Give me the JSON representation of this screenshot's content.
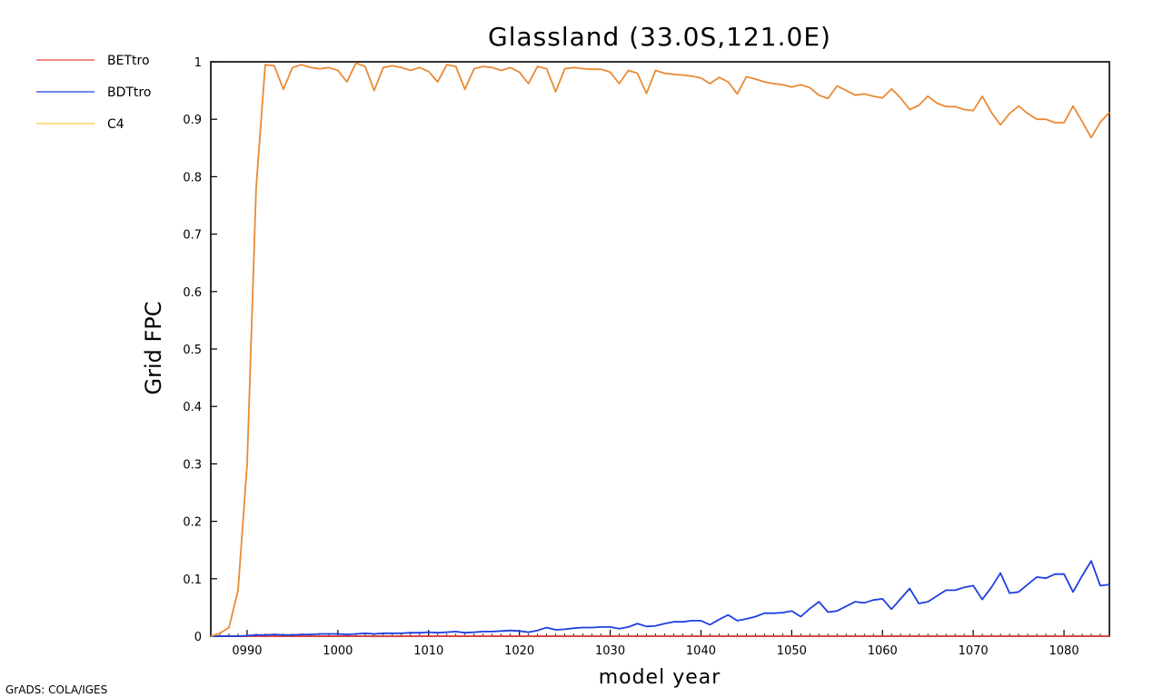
{
  "footer": {
    "credit": "GrADS: COLA/IGES"
  },
  "chart_data": {
    "type": "line",
    "title": "Glassland (33.0S,121.0E)",
    "xlabel": "model year",
    "ylabel": "Grid FPC",
    "xlim": [
      986,
      1085
    ],
    "ylim": [
      0,
      1
    ],
    "xticks": [
      990,
      1000,
      1010,
      1020,
      1030,
      1040,
      1050,
      1060,
      1070,
      1080
    ],
    "xtick_labels": [
      "0990",
      "1000",
      "1010",
      "1020",
      "1030",
      "1040",
      "1050",
      "1060",
      "1070",
      "1080"
    ],
    "yticks": [
      0,
      0.1,
      0.2,
      0.3,
      0.4,
      0.5,
      0.6,
      0.7,
      0.8,
      0.9,
      1
    ],
    "ytick_labels": [
      "0",
      "0.1",
      "0.2",
      "0.3",
      "0.4",
      "0.5",
      "0.6",
      "0.7",
      "0.8",
      "0.9",
      "1"
    ],
    "grid": false,
    "legend_position": "top-left outside",
    "series": [
      {
        "name": "BETtro",
        "color": "#e8453c",
        "x": [
          986,
          1085
        ],
        "y": [
          0,
          0
        ]
      },
      {
        "name": "BDTtro",
        "color": "#1f3fe0",
        "x": [
          986,
          987,
          988,
          989,
          990,
          991,
          992,
          993,
          994,
          995,
          996,
          997,
          998,
          999,
          1000,
          1001,
          1002,
          1003,
          1004,
          1005,
          1006,
          1007,
          1008,
          1009,
          1010,
          1011,
          1012,
          1013,
          1014,
          1015,
          1016,
          1017,
          1018,
          1019,
          1020,
          1021,
          1022,
          1023,
          1024,
          1025,
          1026,
          1027,
          1028,
          1029,
          1030,
          1031,
          1032,
          1033,
          1034,
          1035,
          1036,
          1037,
          1038,
          1039,
          1040,
          1041,
          1042,
          1043,
          1044,
          1045,
          1046,
          1047,
          1048,
          1049,
          1050,
          1051,
          1052,
          1053,
          1054,
          1055,
          1056,
          1057,
          1058,
          1059,
          1060,
          1061,
          1062,
          1063,
          1064,
          1065,
          1066,
          1067,
          1068,
          1069,
          1070,
          1071,
          1072,
          1073,
          1074,
          1075,
          1076,
          1077,
          1078,
          1079,
          1080,
          1081,
          1082,
          1083,
          1084,
          1085
        ],
        "y": [
          0,
          0,
          0,
          0,
          0.001,
          0.002,
          0.002,
          0.003,
          0.002,
          0.002,
          0.003,
          0.003,
          0.004,
          0.004,
          0.004,
          0.003,
          0.004,
          0.005,
          0.004,
          0.005,
          0.005,
          0.005,
          0.006,
          0.006,
          0.007,
          0.006,
          0.007,
          0.008,
          0.006,
          0.007,
          0.008,
          0.008,
          0.009,
          0.01,
          0.009,
          0.007,
          0.01,
          0.015,
          0.011,
          0.012,
          0.014,
          0.015,
          0.015,
          0.016,
          0.016,
          0.013,
          0.016,
          0.022,
          0.017,
          0.018,
          0.022,
          0.025,
          0.025,
          0.027,
          0.027,
          0.02,
          0.029,
          0.037,
          0.027,
          0.03,
          0.034,
          0.04,
          0.04,
          0.041,
          0.044,
          0.034,
          0.048,
          0.06,
          0.042,
          0.044,
          0.052,
          0.06,
          0.058,
          0.063,
          0.065,
          0.047,
          0.065,
          0.083,
          0.057,
          0.06,
          0.07,
          0.08,
          0.08,
          0.085,
          0.088,
          0.064,
          0.085,
          0.11,
          0.075,
          0.077,
          0.09,
          0.103,
          0.101,
          0.108,
          0.108,
          0.077,
          0.105,
          0.131,
          0.088,
          0.09
        ]
      },
      {
        "name": "C4",
        "color": "#f5c842",
        "x": [
          986,
          987,
          988,
          989,
          990,
          991,
          992,
          993,
          994,
          995,
          996,
          997,
          998,
          999,
          1000,
          1001,
          1002,
          1003,
          1004,
          1005,
          1006,
          1007,
          1008,
          1009,
          1010,
          1011,
          1012,
          1013,
          1014,
          1015,
          1016,
          1017,
          1018,
          1019,
          1020,
          1021,
          1022,
          1023,
          1024,
          1025,
          1026,
          1027,
          1028,
          1029,
          1030,
          1031,
          1032,
          1033,
          1034,
          1035,
          1036,
          1037,
          1038,
          1039,
          1040,
          1041,
          1042,
          1043,
          1044,
          1045,
          1046,
          1047,
          1048,
          1049,
          1050,
          1051,
          1052,
          1053,
          1054,
          1055,
          1056,
          1057,
          1058,
          1059,
          1060,
          1061,
          1062,
          1063,
          1064,
          1065,
          1066,
          1067,
          1068,
          1069,
          1070,
          1071,
          1072,
          1073,
          1074,
          1075,
          1076,
          1077,
          1078,
          1079,
          1080,
          1081,
          1082,
          1083,
          1084,
          1085
        ],
        "y": [
          0,
          0.005,
          0.015,
          0.08,
          0.3,
          0.78,
          0.995,
          0.993,
          0.952,
          0.99,
          0.995,
          0.99,
          0.988,
          0.99,
          0.985,
          0.965,
          0.998,
          0.992,
          0.95,
          0.99,
          0.993,
          0.99,
          0.985,
          0.99,
          0.983,
          0.965,
          0.995,
          0.992,
          0.952,
          0.988,
          0.992,
          0.99,
          0.985,
          0.99,
          0.982,
          0.962,
          0.992,
          0.988,
          0.948,
          0.988,
          0.99,
          0.988,
          0.987,
          0.987,
          0.982,
          0.962,
          0.985,
          0.98,
          0.945,
          0.985,
          0.98,
          0.978,
          0.977,
          0.975,
          0.972,
          0.962,
          0.973,
          0.965,
          0.944,
          0.974,
          0.97,
          0.965,
          0.962,
          0.96,
          0.956,
          0.96,
          0.955,
          0.942,
          0.936,
          0.958,
          0.95,
          0.942,
          0.944,
          0.94,
          0.937,
          0.953,
          0.937,
          0.917,
          0.924,
          0.94,
          0.928,
          0.922,
          0.922,
          0.917,
          0.915,
          0.94,
          0.912,
          0.89,
          0.91,
          0.923,
          0.91,
          0.9,
          0.9,
          0.894,
          0.894,
          0.923,
          0.896,
          0.868,
          0.895,
          0.912
        ]
      }
    ]
  }
}
